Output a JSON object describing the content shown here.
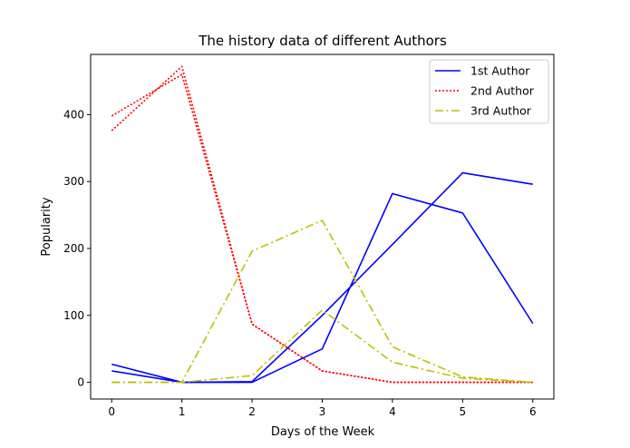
{
  "chart_data": {
    "type": "line",
    "title": "The history data of different Authors",
    "xlabel": "Days of the Week",
    "ylabel": "Popularity",
    "xlim": [
      -0.3,
      6.3
    ],
    "ylim": [
      -25,
      490
    ],
    "xticks": [
      0,
      1,
      2,
      3,
      4,
      5,
      6
    ],
    "yticks": [
      0,
      100,
      200,
      300,
      400
    ],
    "grid": false,
    "legend_position": "top-right",
    "x": [
      0,
      1,
      2,
      3,
      4,
      5,
      6
    ],
    "series": [
      {
        "name": "1st Author",
        "color": "#0000ff",
        "style": "solid",
        "values": [
          17,
          0,
          0,
          50,
          282,
          253,
          88
        ]
      },
      {
        "name": "",
        "color": "#0000ff",
        "style": "solid",
        "values": [
          27,
          0,
          1,
          100,
          206,
          313,
          296
        ]
      },
      {
        "name": "2nd Author",
        "color": "#ff0000",
        "style": "dotted",
        "values": [
          398,
          460,
          87,
          17,
          0,
          0,
          0
        ]
      },
      {
        "name": "",
        "color": "#ff0000",
        "style": "dotted",
        "values": [
          376,
          472,
          87,
          17,
          0,
          0,
          0
        ]
      },
      {
        "name": "3rd Author",
        "color": "#bfbf00",
        "style": "dashdot",
        "values": [
          0,
          0,
          196,
          242,
          53,
          8,
          0
        ]
      },
      {
        "name": "",
        "color": "#bfbf00",
        "style": "dashdot",
        "values": [
          0,
          0,
          10,
          108,
          30,
          6,
          0
        ]
      }
    ]
  }
}
